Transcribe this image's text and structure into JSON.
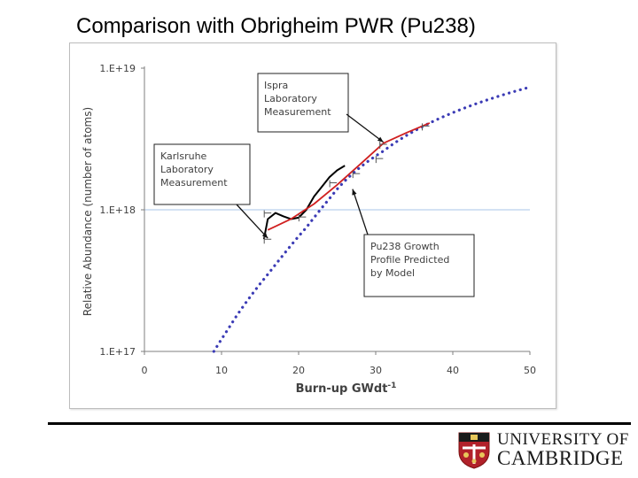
{
  "slide": {
    "title": "Comparison with Obrigheim PWR (Pu238)"
  },
  "logo": {
    "line1": "UNIVERSITY OF",
    "line2": "CAMBRIDGE"
  },
  "chart_data": {
    "type": "line",
    "scale_y": "log",
    "xlabel": "Burn-up GWdt",
    "xlabel_superscript": "-1",
    "ylabel": "Relative Abundance   (number of atoms)",
    "xlim": [
      0,
      50
    ],
    "ylim": [
      1e+17,
      1e+19
    ],
    "x_ticks": [
      "0",
      "10",
      "20",
      "30",
      "40",
      "50"
    ],
    "y_ticks": [
      "1.E+17",
      "1.E+18",
      "1.E+19"
    ],
    "gridline_y": 1e+18,
    "colors": {
      "model": "#3b3bb5",
      "karlsruhe": "#000000",
      "ispra": "#d02020",
      "gridline": "#a9c4e8"
    },
    "series": [
      {
        "style": "dotted",
        "x": [
          9,
          10,
          11,
          12,
          13,
          14,
          15,
          16,
          17,
          18,
          19,
          20,
          21,
          22,
          23,
          24,
          25,
          26,
          27,
          28,
          29,
          30,
          31,
          32,
          33,
          34,
          35,
          36,
          37,
          38,
          39,
          40,
          41,
          42,
          43,
          44,
          45,
          46,
          47,
          48,
          49,
          50
        ],
        "y": [
          1e+17,
          1.22e+17,
          1.48e+17,
          1.8e+17,
          2.15e+17,
          2.55e+17,
          3e+17,
          3.5e+17,
          4.1e+17,
          4.8e+17,
          5.6e+17,
          6.5e+17,
          7.5e+17,
          8.8e+17,
          1.03e+18,
          1.2e+18,
          1.4e+18,
          1.6e+18,
          1.8e+18,
          2e+18,
          2.2e+18,
          2.4e+18,
          2.6e+18,
          2.85e+18,
          3.1e+18,
          3.35e+18,
          3.6e+18,
          3.85e+18,
          4.1e+18,
          4.35e+18,
          4.6e+18,
          4.85e+18,
          5.1e+18,
          5.35e+18,
          5.6e+18,
          5.85e+18,
          6.1e+18,
          6.35e+18,
          6.6e+18,
          6.85e+18,
          7.1e+18,
          7.35e+18
        ]
      },
      {
        "style": "solid",
        "x": [
          15.5,
          16,
          17,
          18,
          19,
          20,
          21,
          22,
          23,
          24,
          25,
          26
        ],
        "y": [
          6.2e+17,
          8.6e+17,
          9.5e+17,
          9e+17,
          8.6e+17,
          8.8e+17,
          1e+18,
          1.24e+18,
          1.45e+18,
          1.7e+18,
          1.9e+18,
          2.05e+18
        ]
      },
      {
        "style": "solid",
        "x": [
          16,
          19,
          22,
          25,
          28,
          31,
          34,
          37
        ],
        "y": [
          7.2e+17,
          8.6e+17,
          1.1e+18,
          1.5e+18,
          2.1e+18,
          2.95e+18,
          3.5e+18,
          4.1e+18
        ]
      }
    ],
    "markers": [
      {
        "x": 16,
        "y": 6.2e+17
      },
      {
        "x": 16,
        "y": 9.5e+17
      },
      {
        "x": 20.5,
        "y": 8.9e+17
      },
      {
        "x": 24.5,
        "y": 1.55e+18
      },
      {
        "x": 27.5,
        "y": 1.8e+18
      },
      {
        "x": 30.5,
        "y": 2.3e+18
      },
      {
        "x": 31,
        "y": 2.9e+18
      },
      {
        "x": 36.5,
        "y": 3.9e+18
      }
    ],
    "annotations": [
      {
        "lines": [
          "Ispra",
          "Laboratory",
          "Measurement"
        ],
        "target": {
          "x": 31,
          "y": 3e+18
        }
      },
      {
        "lines": [
          "Karlsruhe",
          "Laboratory",
          "Measurement"
        ],
        "target": {
          "x": 16,
          "y": 6.3e+17
        }
      },
      {
        "lines": [
          "Pu238 Growth",
          "Profile Predicted",
          "by Model"
        ],
        "target": {
          "x": 27,
          "y": 1.4e+18
        }
      }
    ]
  }
}
